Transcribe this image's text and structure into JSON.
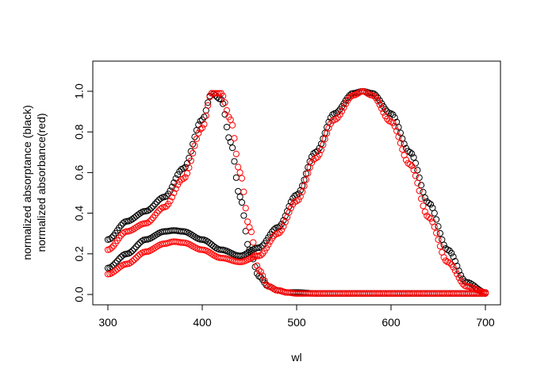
{
  "chart_data": {
    "type": "scatter",
    "title": "",
    "xlabel": "wl",
    "ylabel_lines": [
      "normalized absorptance (black)",
      "normalized absorbance(red)"
    ],
    "xlim": [
      300,
      700
    ],
    "ylim": [
      0,
      1
    ],
    "x_ticks": [
      300,
      400,
      500,
      600,
      700
    ],
    "y_ticks": [
      0.0,
      0.2,
      0.4,
      0.6,
      0.8,
      1.0
    ],
    "y_tick_labels": [
      "0.0",
      "0.2",
      "0.4",
      "0.6",
      "0.8",
      "1.0"
    ],
    "marker": "open-circle",
    "grid": false,
    "legend": "none",
    "x_step": 2,
    "series": [
      {
        "color": "#000000",
        "curves": [
          {
            "x": [
              300,
              320,
              340,
              360,
              380,
              400,
              410,
              420,
              430,
              440,
              450,
              460,
              470,
              480,
              490,
              500,
              520,
              540,
              560,
              580,
              600,
              650,
              700
            ],
            "y": [
              0.27,
              0.36,
              0.41,
              0.48,
              0.62,
              0.86,
              0.99,
              0.96,
              0.75,
              0.48,
              0.22,
              0.09,
              0.04,
              0.02,
              0.01,
              0.01,
              0.005,
              0.005,
              0.005,
              0.005,
              0.005,
              0.005,
              0.005
            ]
          },
          {
            "x": [
              300,
              320,
              340,
              360,
              370,
              380,
              400,
              420,
              440,
              460,
              480,
              500,
              520,
              540,
              560,
              570,
              580,
              600,
              620,
              640,
              660,
              680,
              700
            ],
            "y": [
              0.13,
              0.2,
              0.27,
              0.31,
              0.315,
              0.31,
              0.27,
              0.22,
              0.19,
              0.23,
              0.33,
              0.49,
              0.7,
              0.89,
              0.99,
              1.0,
              0.99,
              0.89,
              0.7,
              0.45,
              0.22,
              0.06,
              0.01
            ]
          }
        ]
      },
      {
        "color": "#ff0000",
        "curves": [
          {
            "x": [
              300,
              320,
              340,
              360,
              380,
              400,
              410,
              420,
              430,
              440,
              450,
              460,
              470,
              480,
              490,
              500,
              520,
              540,
              560,
              580,
              600,
              650,
              700
            ],
            "y": [
              0.22,
              0.31,
              0.35,
              0.43,
              0.57,
              0.82,
              0.99,
              0.99,
              0.86,
              0.6,
              0.33,
              0.12,
              0.04,
              0.02,
              0.01,
              0.005,
              0.005,
              0.005,
              0.005,
              0.005,
              0.005,
              0.005,
              0.005
            ]
          },
          {
            "x": [
              300,
              320,
              340,
              360,
              370,
              380,
              400,
              420,
              440,
              460,
              480,
              500,
              520,
              540,
              560,
              570,
              580,
              600,
              620,
              640,
              660,
              680,
              700
            ],
            "y": [
              0.1,
              0.15,
              0.21,
              0.25,
              0.26,
              0.255,
              0.22,
              0.18,
              0.16,
              0.19,
              0.3,
              0.46,
              0.67,
              0.86,
              0.98,
              1.0,
              0.98,
              0.85,
              0.64,
              0.38,
              0.16,
              0.04,
              0.01
            ]
          }
        ]
      }
    ]
  }
}
